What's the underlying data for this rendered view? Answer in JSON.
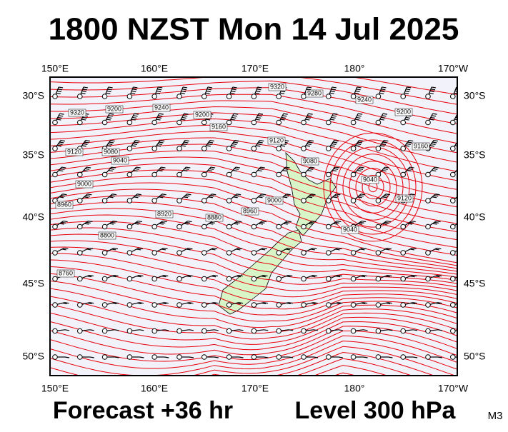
{
  "header": {
    "title": "1800 NZST Mon 14 Jul 2025"
  },
  "map": {
    "lon_labels": [
      "150°E",
      "160°E",
      "170°E",
      "180°",
      "170°W"
    ],
    "lat_labels": [
      "30°S",
      "35°S",
      "40°S",
      "45°S",
      "50°S"
    ],
    "contour_labels": [
      "9320",
      "9280",
      "9240",
      "9240",
      "9200",
      "9200",
      "9160",
      "9120",
      "9080",
      "9040",
      "9080",
      "9120",
      "9200",
      "9320",
      "9000",
      "8960",
      "8800",
      "8760",
      "9040",
      "9160",
      "9120",
      "9040",
      "9000",
      "8960",
      "8920",
      "8880"
    ]
  },
  "footer": {
    "forecast": "Forecast +36 hr",
    "level": "Level 300 hPa",
    "code": "M3"
  }
}
